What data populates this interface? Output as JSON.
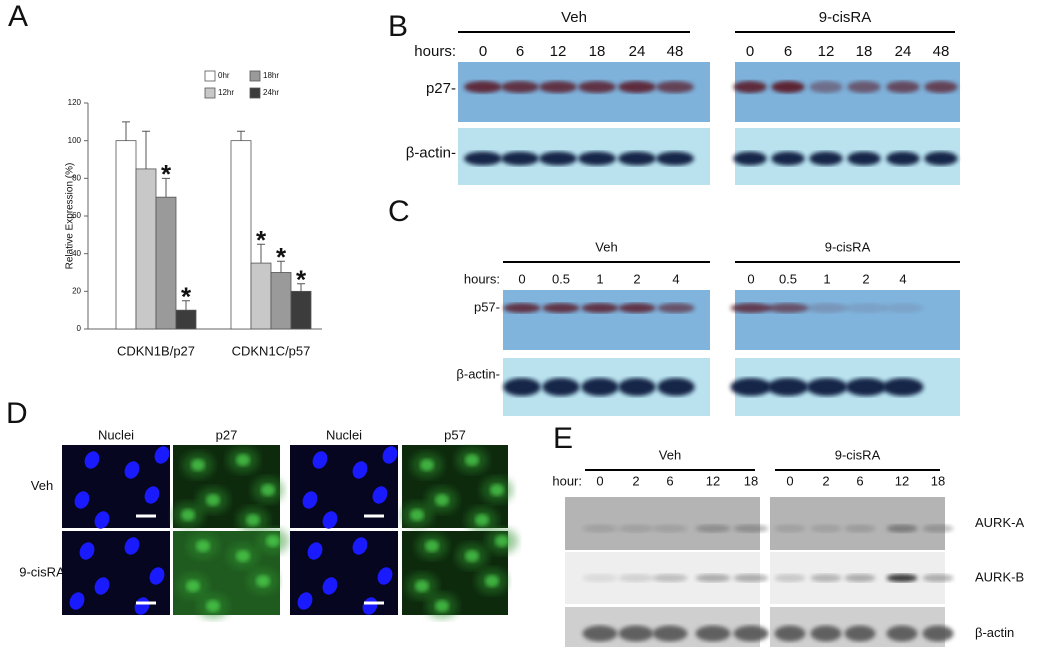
{
  "panel_labels": [
    "A",
    "B",
    "C",
    "D",
    "E"
  ],
  "chart_data": {
    "type": "bar",
    "ylabel": "Relative Expression (%)",
    "categories": [
      "CDKN1B/p27",
      "CDKN1C/p57"
    ],
    "series": [
      {
        "name": "0hr",
        "color": "#ffffff",
        "values": [
          100,
          100
        ],
        "errors": [
          10,
          5
        ],
        "marks": [
          null,
          null
        ]
      },
      {
        "name": "12hr",
        "color": "#c8c8c8",
        "values": [
          85,
          35
        ],
        "errors": [
          20,
          10
        ],
        "marks": [
          null,
          "*"
        ]
      },
      {
        "name": "18hr",
        "color": "#9a9a9a",
        "values": [
          70,
          30
        ],
        "errors": [
          10,
          6
        ],
        "marks": [
          "*",
          "*"
        ]
      },
      {
        "name": "24hr",
        "color": "#3c3c3c",
        "values": [
          10,
          20
        ],
        "errors": [
          5,
          4
        ],
        "marks": [
          "*",
          "*"
        ]
      }
    ],
    "ylim": [
      0,
      120
    ],
    "yticks": [
      0,
      20,
      40,
      60,
      80,
      100,
      120
    ]
  },
  "blot_b": {
    "groups": [
      "Veh",
      "9-cisRA"
    ],
    "hours_label": "hours:",
    "hours": [
      0,
      6,
      12,
      18,
      24,
      48
    ],
    "rows": [
      "p27-",
      "β-actin-"
    ]
  },
  "blot_c": {
    "groups": [
      "Veh",
      "9-cisRA"
    ],
    "hours_label": "hours:",
    "hours": [
      0,
      0.5,
      1,
      2,
      4
    ],
    "rows": [
      "p57-",
      "β-actin-"
    ]
  },
  "imaging_d": {
    "columns": [
      "Nuclei",
      "p27",
      "Nuclei",
      "p57"
    ],
    "rows": [
      "Veh",
      "9-cisRA"
    ]
  },
  "blot_e": {
    "groups": [
      "Veh",
      "9-cisRA"
    ],
    "hours_label": "hour:",
    "hours": [
      0,
      2,
      6,
      12,
      18
    ],
    "rows": [
      "AURK-A",
      "AURK-B",
      "β-actin"
    ]
  }
}
